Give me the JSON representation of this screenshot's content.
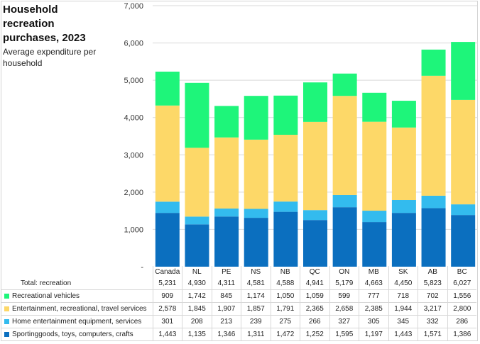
{
  "title": "Household recreation purchases, 2023",
  "subtitle": "Average expenditure per household",
  "chart_data": {
    "type": "bar",
    "stacked": true,
    "title": "Household recreation purchases, 2023",
    "subtitle": "Average expenditure per household",
    "xlabel": "",
    "ylabel": "",
    "ylim": [
      0,
      7000
    ],
    "yticks": [
      0,
      1000,
      2000,
      3000,
      4000,
      5000,
      6000,
      7000
    ],
    "ytick_labels": [
      "-",
      "1,000",
      "2,000",
      "3,000",
      "4,000",
      "5,000",
      "6,000",
      "7,000"
    ],
    "grid": true,
    "legend": "bottom-table",
    "categories": [
      "Canada",
      "NL",
      "PE",
      "NS",
      "NB",
      "QC",
      "ON",
      "MB",
      "SK",
      "AB",
      "BC"
    ],
    "totals": {
      "name": "Total: recreation",
      "values": [
        5231,
        4930,
        4311,
        4581,
        4588,
        4941,
        5179,
        4663,
        4450,
        5823,
        6027
      ],
      "labels": [
        "5,231",
        "4,930",
        "4,311",
        "4,581",
        "4,588",
        "4,941",
        "5,179",
        "4,663",
        "4,450",
        "5,823",
        "6,027"
      ]
    },
    "series": [
      {
        "name": "Sportinggoods, toys, computers, crafts",
        "color": "#0b6fbf",
        "values": [
          1443,
          1135,
          1346,
          1311,
          1472,
          1252,
          1595,
          1197,
          1443,
          1571,
          1386
        ],
        "labels": [
          "1,443",
          "1,135",
          "1,346",
          "1,311",
          "1,472",
          "1,252",
          "1,595",
          "1,197",
          "1,443",
          "1,571",
          "1,386"
        ]
      },
      {
        "name": "Home entertainment equipment, services",
        "color": "#33bbee",
        "values": [
          301,
          208,
          213,
          239,
          275,
          266,
          327,
          305,
          345,
          332,
          286
        ],
        "labels": [
          "301",
          "208",
          "213",
          "239",
          "275",
          "266",
          "327",
          "305",
          "345",
          "332",
          "286"
        ]
      },
      {
        "name": "Entertainment, recreational, travel services",
        "color": "#fdd868",
        "values": [
          2578,
          1845,
          1907,
          1857,
          1791,
          2365,
          2658,
          2385,
          1944,
          3217,
          2800
        ],
        "labels": [
          "2,578",
          "1,845",
          "1,907",
          "1,857",
          "1,791",
          "2,365",
          "2,658",
          "2,385",
          "1,944",
          "3,217",
          "2,800"
        ]
      },
      {
        "name": "Recreational vehicles",
        "color": "#1ef57a",
        "values": [
          909,
          1742,
          845,
          1174,
          1050,
          1059,
          599,
          777,
          718,
          702,
          1556
        ],
        "labels": [
          "909",
          "1,742",
          "845",
          "1,174",
          "1,050",
          "1,059",
          "599",
          "777",
          "718",
          "702",
          "1,556"
        ]
      }
    ]
  }
}
